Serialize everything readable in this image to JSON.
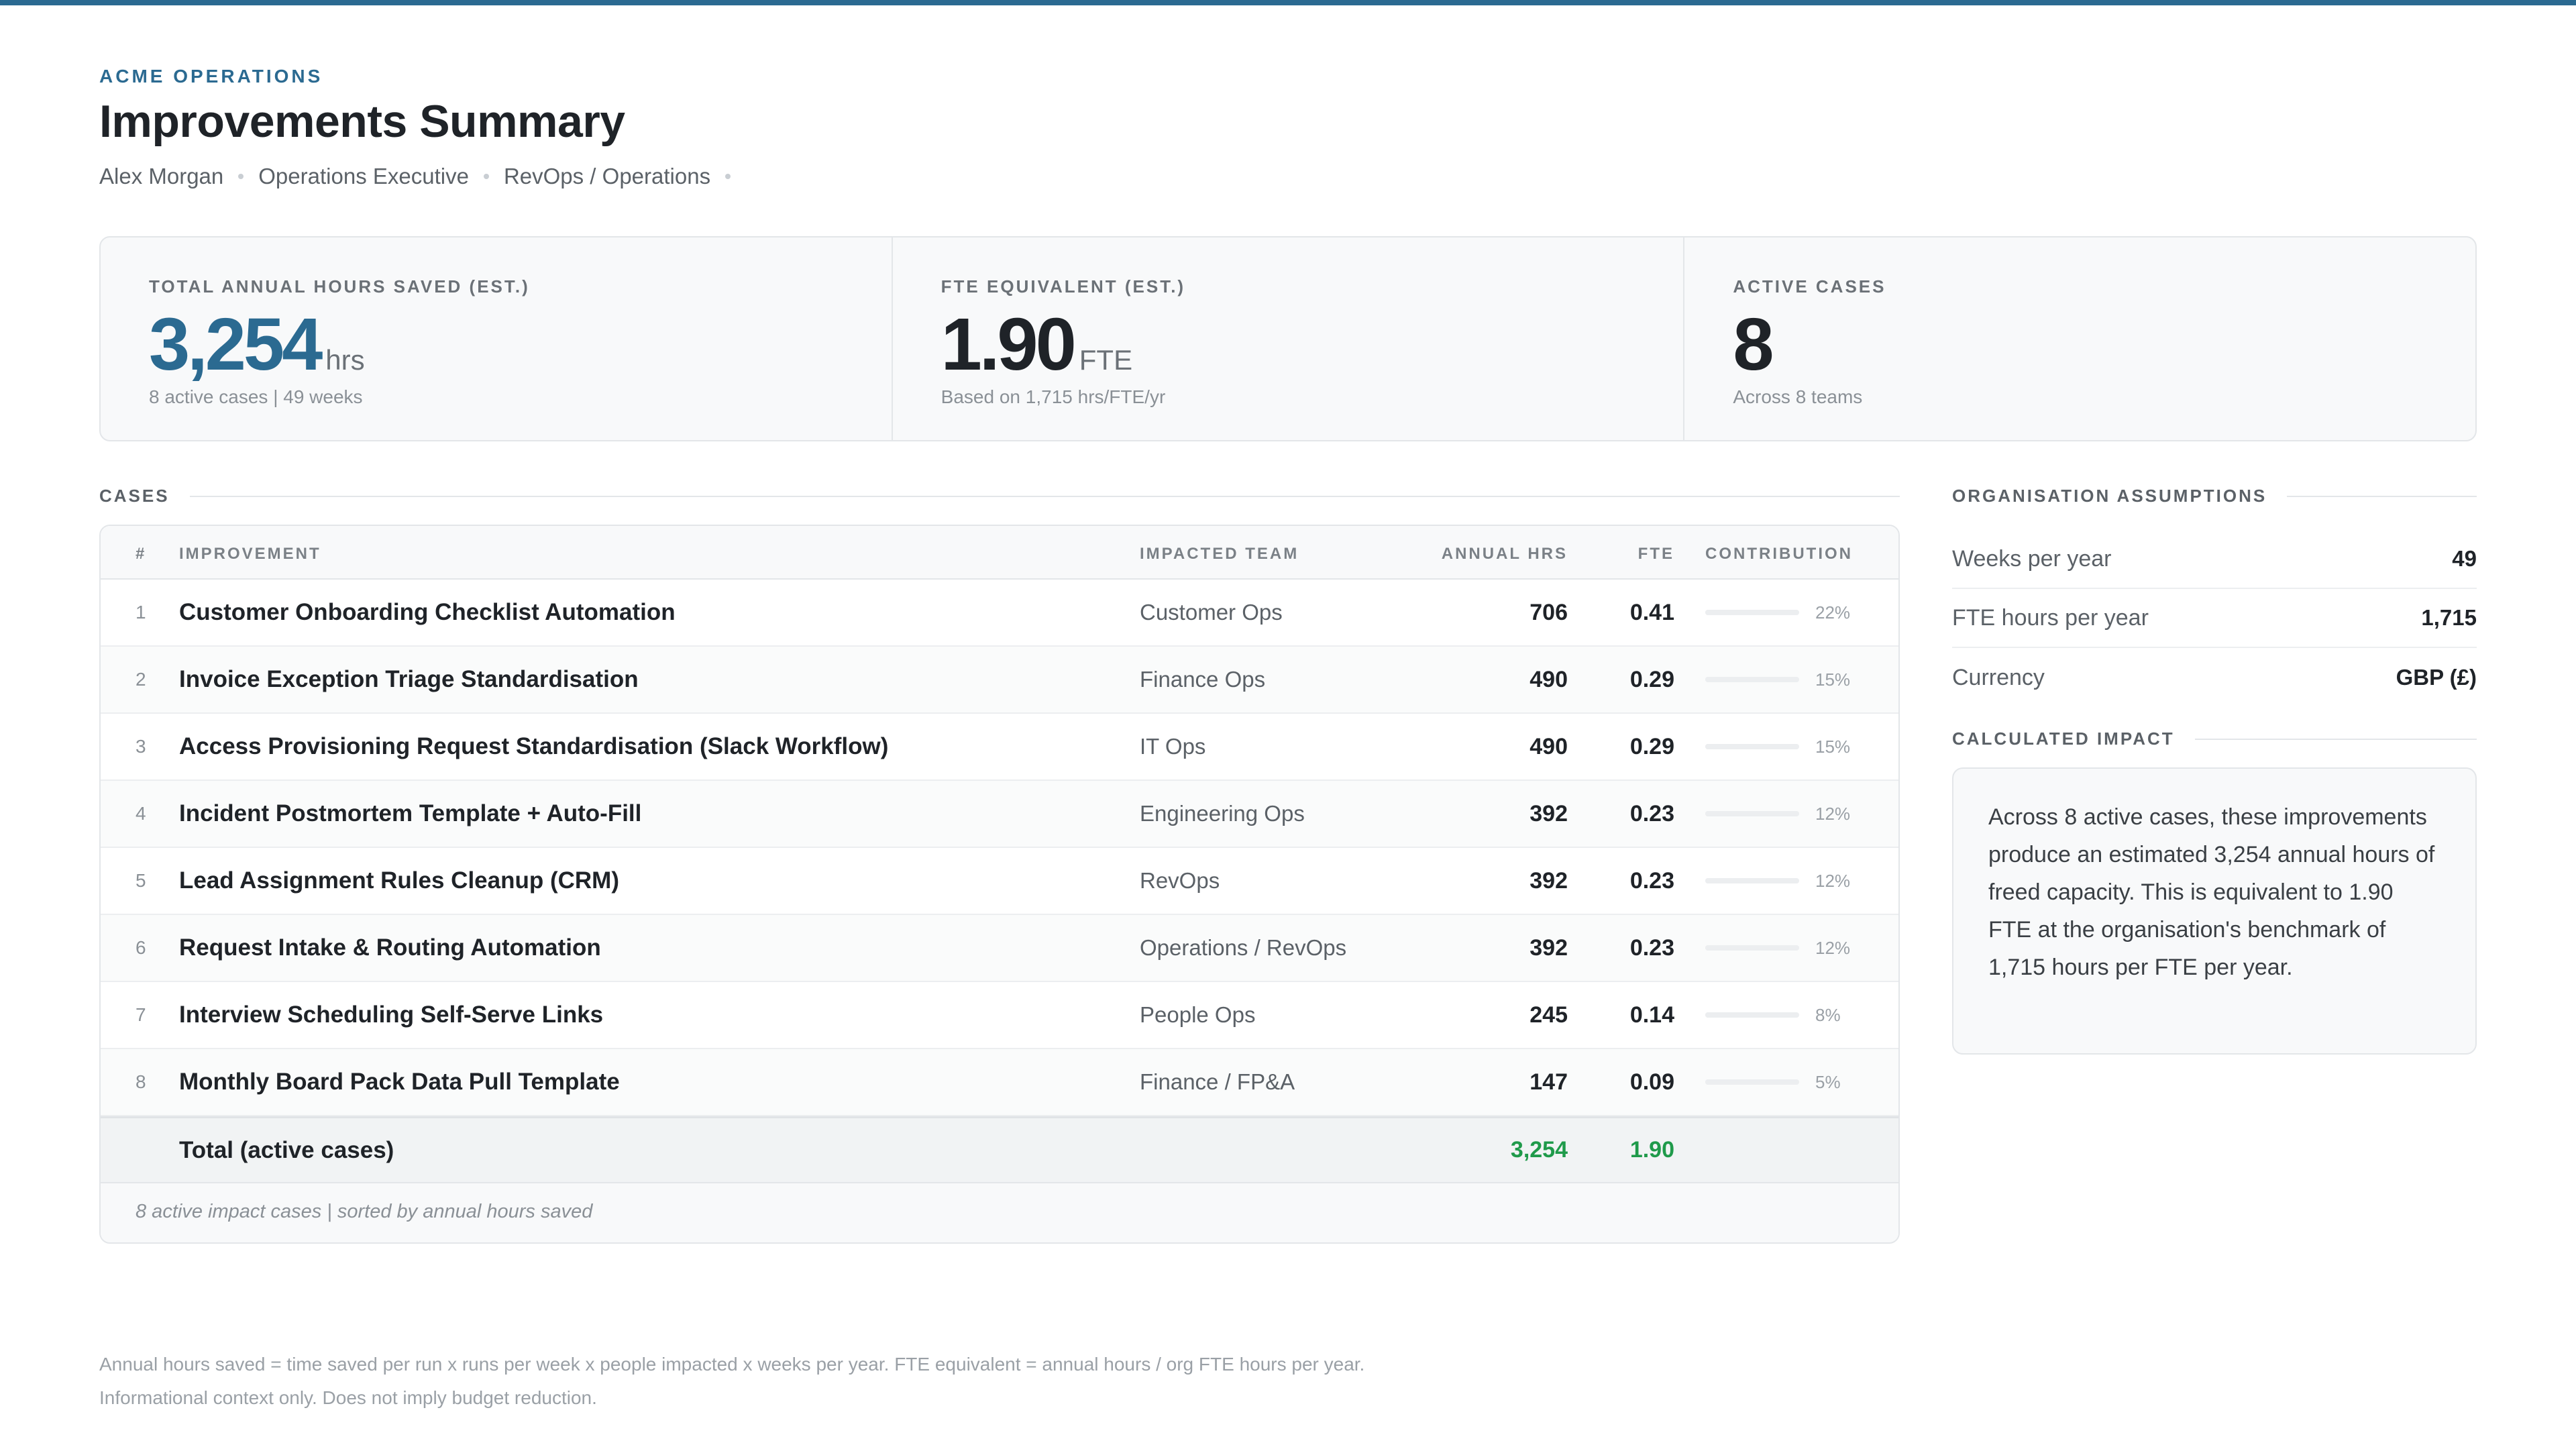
{
  "header": {
    "org": "ACME OPERATIONS",
    "title": "Improvements Summary",
    "meta": [
      "Alex Morgan",
      "Operations Executive",
      "RevOps / Operations"
    ]
  },
  "kpis": [
    {
      "label": "TOTAL ANNUAL HOURS SAVED (EST.)",
      "value": "3,254",
      "unit": "hrs",
      "sub": "8 active cases | 49 weeks"
    },
    {
      "label": "FTE EQUIVALENT (EST.)",
      "value": "1.90",
      "unit": "FTE",
      "sub": "Based on 1,715 hrs/FTE/yr"
    },
    {
      "label": "ACTIVE CASES",
      "value": "8",
      "unit": "",
      "sub": "Across 8 teams"
    }
  ],
  "cases": {
    "section_title": "CASES",
    "columns": {
      "idx": "#",
      "name": "IMPROVEMENT",
      "team": "IMPACTED TEAM",
      "hrs": "ANNUAL HRS",
      "fte": "FTE",
      "contribution": "CONTRIBUTION"
    },
    "rows": [
      {
        "idx": "1",
        "name": "Customer Onboarding Checklist Automation",
        "team": "Customer Ops",
        "hrs": "706",
        "fte": "0.41",
        "pct": "22%",
        "share": 0.22
      },
      {
        "idx": "2",
        "name": "Invoice Exception Triage Standardisation",
        "team": "Finance Ops",
        "hrs": "490",
        "fte": "0.29",
        "pct": "15%",
        "share": 0.15
      },
      {
        "idx": "3",
        "name": "Access Provisioning Request Standardisation (Slack Workflow)",
        "team": "IT Ops",
        "hrs": "490",
        "fte": "0.29",
        "pct": "15%",
        "share": 0.15
      },
      {
        "idx": "4",
        "name": "Incident Postmortem Template + Auto-Fill",
        "team": "Engineering Ops",
        "hrs": "392",
        "fte": "0.23",
        "pct": "12%",
        "share": 0.12
      },
      {
        "idx": "5",
        "name": "Lead Assignment Rules Cleanup (CRM)",
        "team": "RevOps",
        "hrs": "392",
        "fte": "0.23",
        "pct": "12%",
        "share": 0.12
      },
      {
        "idx": "6",
        "name": "Request Intake & Routing Automation",
        "team": "Operations / RevOps",
        "hrs": "392",
        "fte": "0.23",
        "pct": "12%",
        "share": 0.12
      },
      {
        "idx": "7",
        "name": "Interview Scheduling Self-Serve Links",
        "team": "People Ops",
        "hrs": "245",
        "fte": "0.14",
        "pct": "8%",
        "share": 0.08
      },
      {
        "idx": "8",
        "name": "Monthly Board Pack Data Pull Template",
        "team": "Finance / FP&A",
        "hrs": "147",
        "fte": "0.09",
        "pct": "5%",
        "share": 0.05
      }
    ],
    "total": {
      "label": "Total (active cases)",
      "hrs": "3,254",
      "fte": "1.90"
    },
    "footer": "8 active impact cases | sorted by annual hours saved"
  },
  "assumptions": {
    "section_title": "ORGANISATION ASSUMPTIONS",
    "items": [
      {
        "label": "Weeks per year",
        "value": "49"
      },
      {
        "label": "FTE hours per year",
        "value": "1,715"
      },
      {
        "label": "Currency",
        "value": "GBP (£)"
      }
    ]
  },
  "impact": {
    "section_title": "CALCULATED IMPACT",
    "text": "Across 8 active cases, these improvements produce an estimated 3,254 annual hours of freed capacity. This is equivalent to 1.90 FTE at the organisation's benchmark of 1,715 hours per FTE per year."
  },
  "footnotes": [
    "Annual hours saved = time saved per run x runs per week x people impacted x weeks per year. FTE equivalent = annual hours / org FTE hours per year.",
    "Informational context only. Does not imply budget reduction."
  ],
  "colors": {
    "accent": "#2b6a91",
    "positive": "#1f9a4a"
  }
}
